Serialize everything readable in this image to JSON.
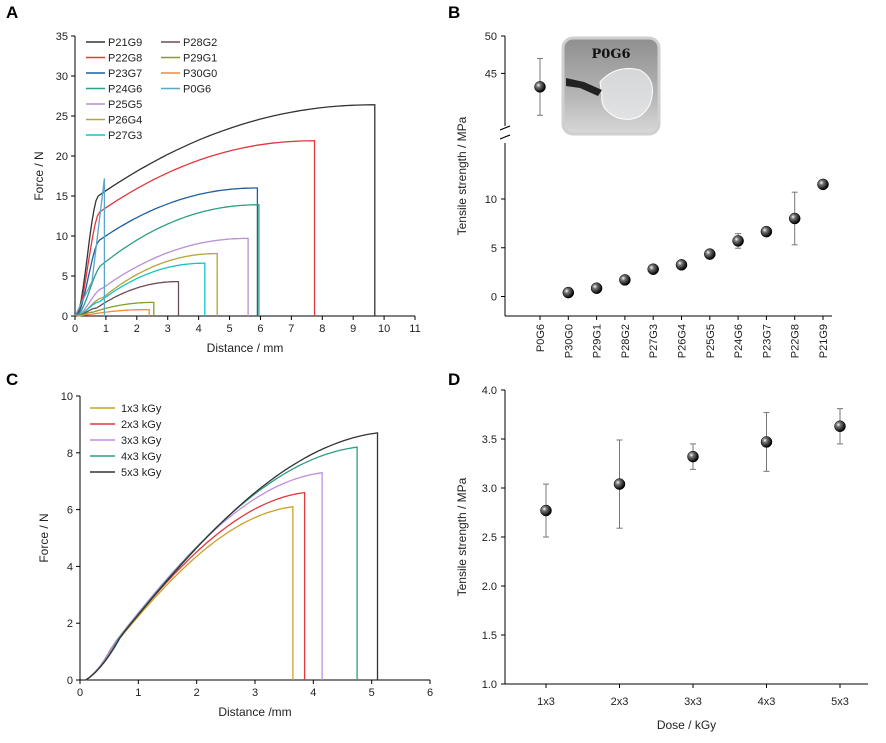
{
  "chart_data": [
    {
      "panel": "A",
      "type": "line",
      "xlabel": "Distance / mm",
      "ylabel": "Force / N",
      "xlim": [
        0,
        11
      ],
      "ylim": [
        0,
        35
      ],
      "xticks": [
        0,
        1,
        2,
        3,
        4,
        5,
        6,
        7,
        8,
        9,
        10,
        11
      ],
      "yticks": [
        0,
        5,
        10,
        15,
        20,
        25,
        30,
        35
      ],
      "legend_position": "top-left",
      "series": [
        {
          "name": "P21G9",
          "color": "#333333",
          "break_x": 9.7,
          "peak": 26.4,
          "yield_x": 0.75,
          "yield_y": 15.0
        },
        {
          "name": "P22G8",
          "color": "#e0383e",
          "break_x": 7.75,
          "peak": 21.9,
          "yield_x": 0.8,
          "yield_y": 13.0
        },
        {
          "name": "P23G7",
          "color": "#1f5f9e",
          "break_x": 5.9,
          "peak": 16.0,
          "yield_x": 0.8,
          "yield_y": 9.5
        },
        {
          "name": "P24G6",
          "color": "#2e9e84",
          "break_x": 5.95,
          "peak": 13.9,
          "yield_x": 0.9,
          "yield_y": 6.5
        },
        {
          "name": "P25G5",
          "color": "#b98fd6",
          "break_x": 5.6,
          "peak": 9.7,
          "yield_x": 0.9,
          "yield_y": 3.5
        },
        {
          "name": "P26G4",
          "color": "#b8a23a",
          "break_x": 4.6,
          "peak": 7.8,
          "yield_x": 0.9,
          "yield_y": 2.3
        },
        {
          "name": "P27G3",
          "color": "#14c2c8",
          "break_x": 4.2,
          "peak": 6.6,
          "yield_x": 0.8,
          "yield_y": 1.8
        },
        {
          "name": "P28G2",
          "color": "#6e4a52",
          "break_x": 3.35,
          "peak": 4.3,
          "yield_x": 0.7,
          "yield_y": 1.0
        },
        {
          "name": "P29G1",
          "color": "#8a9a2a",
          "break_x": 2.55,
          "peak": 1.7,
          "yield_x": 0.6,
          "yield_y": 0.5
        },
        {
          "name": "P30G0",
          "color": "#f08a3c",
          "break_x": 2.4,
          "peak": 0.8,
          "yield_x": 0.5,
          "yield_y": 0.2
        },
        {
          "name": "P0G6",
          "color": "#5aa5c8",
          "break_x": 0.95,
          "peak": 17.2,
          "yield_x": 0.95,
          "yield_y": 17.2
        }
      ]
    },
    {
      "panel": "B",
      "type": "scatter",
      "xlabel": "",
      "ylabel": "Tensile strength / MPa",
      "categories": [
        "P0G6",
        "P30G0",
        "P29G1",
        "P28G2",
        "P27G3",
        "P26G4",
        "P25G5",
        "P24G6",
        "P23G7",
        "P22G8",
        "P21G9"
      ],
      "values": [
        43.2,
        0.4,
        0.85,
        1.7,
        2.8,
        3.25,
        4.35,
        5.7,
        6.65,
        8.0,
        11.5
      ],
      "errors": [
        3.8,
        0.05,
        0.1,
        0.15,
        0.2,
        0.2,
        0.2,
        0.75,
        0.3,
        2.7,
        0.1
      ],
      "lower_ylim": [
        -2,
        14
      ],
      "lower_yticks": [
        0,
        5,
        10
      ],
      "upper_ylim": [
        38.5,
        50
      ],
      "upper_yticks": [
        45,
        50
      ],
      "axis_break": true,
      "inset_label": "P0G6"
    },
    {
      "panel": "C",
      "type": "line",
      "xlabel": "Distance /mm",
      "ylabel": "Force / N",
      "xlim": [
        0,
        6
      ],
      "ylim": [
        0,
        10
      ],
      "xticks": [
        0,
        1,
        2,
        3,
        4,
        5,
        6
      ],
      "yticks": [
        0,
        2,
        4,
        6,
        8,
        10
      ],
      "legend_position": "top-left",
      "series": [
        {
          "name": "1x3 kGy",
          "color": "#c9a227",
          "break_x": 3.65,
          "peak": 6.1
        },
        {
          "name": "2x3 kGy",
          "color": "#e0383e",
          "break_x": 3.85,
          "peak": 6.6
        },
        {
          "name": "3x3 kGy",
          "color": "#c08ee0",
          "break_x": 4.15,
          "peak": 7.3
        },
        {
          "name": "4x3 kGy",
          "color": "#2e9e84",
          "break_x": 4.75,
          "peak": 8.2
        },
        {
          "name": "5x3 kGy",
          "color": "#333333",
          "break_x": 5.1,
          "peak": 8.7
        }
      ]
    },
    {
      "panel": "D",
      "type": "scatter",
      "xlabel": "Dose / kGy",
      "ylabel": "Tensile strength / MPa",
      "categories": [
        "1x3",
        "2x3",
        "3x3",
        "4x3",
        "5x3"
      ],
      "values": [
        2.77,
        3.04,
        3.32,
        3.47,
        3.63
      ],
      "errors": [
        0.27,
        0.45,
        0.13,
        0.3,
        0.18
      ],
      "ylim": [
        1.0,
        4.0
      ],
      "yticks": [
        "1.0",
        "1.5",
        "2.0",
        "2.5",
        "3.0",
        "3.5",
        "4.0"
      ]
    }
  ]
}
